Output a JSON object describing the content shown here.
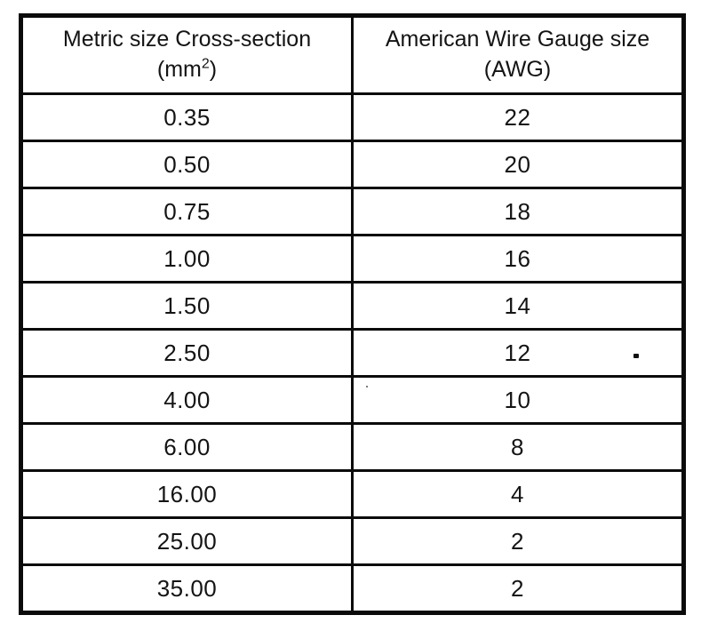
{
  "table": {
    "header": {
      "metric": {
        "line1": "Metric size Cross-section",
        "unit_open": "(mm",
        "unit_sup": "2",
        "unit_close": ")"
      },
      "awg": {
        "line1": "American Wire Gauge size",
        "line2": "(AWG)"
      }
    },
    "rows": [
      {
        "metric": "0.35",
        "awg": "22"
      },
      {
        "metric": "0.50",
        "awg": "20"
      },
      {
        "metric": "0.75",
        "awg": "18"
      },
      {
        "metric": "1.00",
        "awg": "16"
      },
      {
        "metric": "1.50",
        "awg": "14"
      },
      {
        "metric": "2.50",
        "awg": "12"
      },
      {
        "metric": "4.00",
        "awg": "10"
      },
      {
        "metric": "6.00",
        "awg": "8"
      },
      {
        "metric": "16.00",
        "awg": "4"
      },
      {
        "metric": "25.00",
        "awg": "2"
      },
      {
        "metric": "35.00",
        "awg": "2"
      }
    ]
  },
  "colors": {
    "ink": "#0b0b0b",
    "paper": "#ffffff"
  }
}
